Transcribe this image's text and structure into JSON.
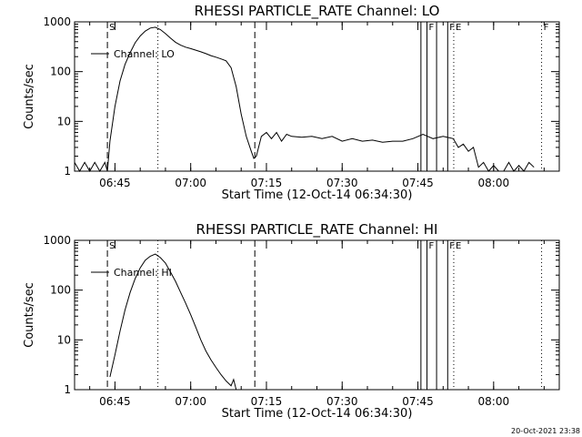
{
  "footer": {
    "timestamp": "20-Oct-2021 23:38"
  },
  "chart_data": [
    {
      "type": "line",
      "title": "RHESSI PARTICLE_RATE Channel: LO",
      "xlabel": "Start Time (12-Oct-14 06:34:30)",
      "ylabel": "Counts/sec",
      "xlim": [
        "06:37",
        "08:13"
      ],
      "ylim": [
        1,
        1000
      ],
      "yscale": "log",
      "xticks": [
        "06:45",
        "07:00",
        "07:15",
        "07:30",
        "07:45",
        "08:00"
      ],
      "yticks": [
        "1",
        "10",
        "100",
        "1000"
      ],
      "legend": {
        "position": "top-left",
        "entries": [
          "Channel: LO"
        ]
      },
      "markers": [
        {
          "time": "06:43.5",
          "style": "dashed",
          "label": "S"
        },
        {
          "time": "06:53.5",
          "style": "dotted",
          "label": ""
        },
        {
          "time": "07:12.7",
          "style": "dashed",
          "label": ""
        },
        {
          "time": "07:45.6",
          "style": "solid",
          "label": ""
        },
        {
          "time": "07:46.8",
          "style": "solid",
          "label": "F"
        },
        {
          "time": "07:48.7",
          "style": "solid",
          "label": ""
        },
        {
          "time": "07:50.9",
          "style": "solid",
          "label": "F"
        },
        {
          "time": "07:52.1",
          "style": "dotted",
          "label": "E"
        },
        {
          "time": "08:09.5",
          "style": "dotted",
          "label": "F"
        }
      ],
      "series": [
        {
          "name": "Channel: LO",
          "x": [
            "06:37",
            "06:38",
            "06:39",
            "06:40",
            "06:41",
            "06:42",
            "06:43",
            "06:43.5",
            "06:44",
            "06:45",
            "06:46",
            "06:47",
            "06:48",
            "06:49",
            "06:50",
            "06:51",
            "06:52",
            "06:53",
            "06:54",
            "06:55",
            "06:56",
            "06:57",
            "06:58",
            "06:59",
            "07:00",
            "07:01",
            "07:02",
            "07:03",
            "07:04",
            "07:05",
            "07:06",
            "07:07",
            "07:08",
            "07:09",
            "07:10",
            "07:11",
            "07:12",
            "07:12.5",
            "07:13",
            "07:14",
            "07:15",
            "07:16",
            "07:17",
            "07:18",
            "07:19",
            "07:20",
            "07:22",
            "07:24",
            "07:26",
            "07:28",
            "07:30",
            "07:32",
            "07:34",
            "07:36",
            "07:38",
            "07:40",
            "07:42",
            "07:44",
            "07:46",
            "07:48",
            "07:50",
            "07:52",
            "07:53",
            "07:54",
            "07:55",
            "07:56",
            "07:57",
            "07:58",
            "07:59",
            "08:00",
            "08:01",
            "08:02",
            "08:03",
            "08:04",
            "08:05",
            "08:06",
            "08:07",
            "08:08"
          ],
          "y": [
            1.5,
            1,
            1.5,
            1,
            1.5,
            1,
            1.5,
            1,
            4,
            20,
            65,
            140,
            240,
            380,
            520,
            650,
            750,
            780,
            700,
            580,
            470,
            390,
            340,
            310,
            290,
            270,
            250,
            230,
            210,
            195,
            180,
            165,
            120,
            50,
            14,
            5,
            2.5,
            1.8,
            2,
            5,
            6,
            4.5,
            6,
            4,
            5.5,
            5,
            4.8,
            5,
            4.5,
            5,
            4,
            4.5,
            4,
            4.2,
            3.8,
            4,
            4,
            4.5,
            5.5,
            4.5,
            5,
            4.5,
            3,
            3.5,
            2.5,
            3,
            1.2,
            1.5,
            1,
            1.3,
            1,
            1,
            1.5,
            1,
            1.3,
            1,
            1.5,
            1.2
          ]
        }
      ]
    },
    {
      "type": "line",
      "title": "RHESSI PARTICLE_RATE Channel: HI",
      "xlabel": "Start Time (12-Oct-14 06:34:30)",
      "ylabel": "Counts/sec",
      "xlim": [
        "06:37",
        "08:13"
      ],
      "ylim": [
        1,
        1000
      ],
      "yscale": "log",
      "xticks": [
        "06:45",
        "07:00",
        "07:15",
        "07:30",
        "07:45",
        "08:00"
      ],
      "yticks": [
        "1",
        "10",
        "100",
        "1000"
      ],
      "legend": {
        "position": "top-left",
        "entries": [
          "Channel: HI"
        ]
      },
      "markers": [
        {
          "time": "06:43.5",
          "style": "dashed",
          "label": "S"
        },
        {
          "time": "06:53.5",
          "style": "dotted",
          "label": ""
        },
        {
          "time": "07:12.7",
          "style": "dashed",
          "label": ""
        },
        {
          "time": "07:45.6",
          "style": "solid",
          "label": ""
        },
        {
          "time": "07:46.8",
          "style": "solid",
          "label": "F"
        },
        {
          "time": "07:48.7",
          "style": "solid",
          "label": ""
        },
        {
          "time": "07:50.9",
          "style": "solid",
          "label": "F"
        },
        {
          "time": "07:52.1",
          "style": "dotted",
          "label": "E"
        },
        {
          "time": "08:09.5",
          "style": "dotted",
          "label": ""
        }
      ],
      "series": [
        {
          "name": "Channel: HI",
          "x": [
            "06:44",
            "06:45",
            "06:46",
            "06:47",
            "06:48",
            "06:49",
            "06:50",
            "06:51",
            "06:52",
            "06:53",
            "06:54",
            "06:55",
            "06:56",
            "06:57",
            "06:58",
            "06:59",
            "07:00",
            "07:01",
            "07:02",
            "07:03",
            "07:04",
            "07:05",
            "07:06",
            "07:07",
            "07:08",
            "07:08.5",
            "07:09"
          ],
          "y": [
            1.8,
            5,
            15,
            40,
            90,
            170,
            280,
            400,
            480,
            530,
            450,
            350,
            230,
            150,
            90,
            55,
            32,
            18,
            10,
            6,
            4,
            2.8,
            2,
            1.5,
            1.2,
            1.6,
            1
          ]
        }
      ]
    }
  ]
}
